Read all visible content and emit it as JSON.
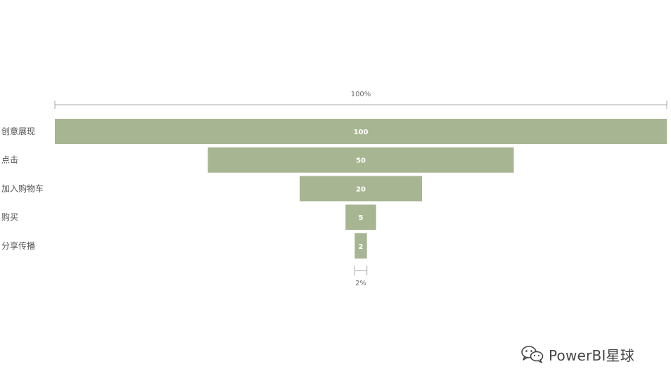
{
  "chart_data": {
    "type": "funnel",
    "categories": [
      "创意展现",
      "点击",
      "加入购物车",
      "购买",
      "分享传播"
    ],
    "values": [
      100,
      50,
      20,
      5,
      2
    ],
    "top_percent_label": "100%",
    "bottom_percent_label": "2%",
    "bar_color": "#a8b592"
  },
  "watermark": {
    "text": "PowerBI星球",
    "icon": "wechat-icon"
  }
}
